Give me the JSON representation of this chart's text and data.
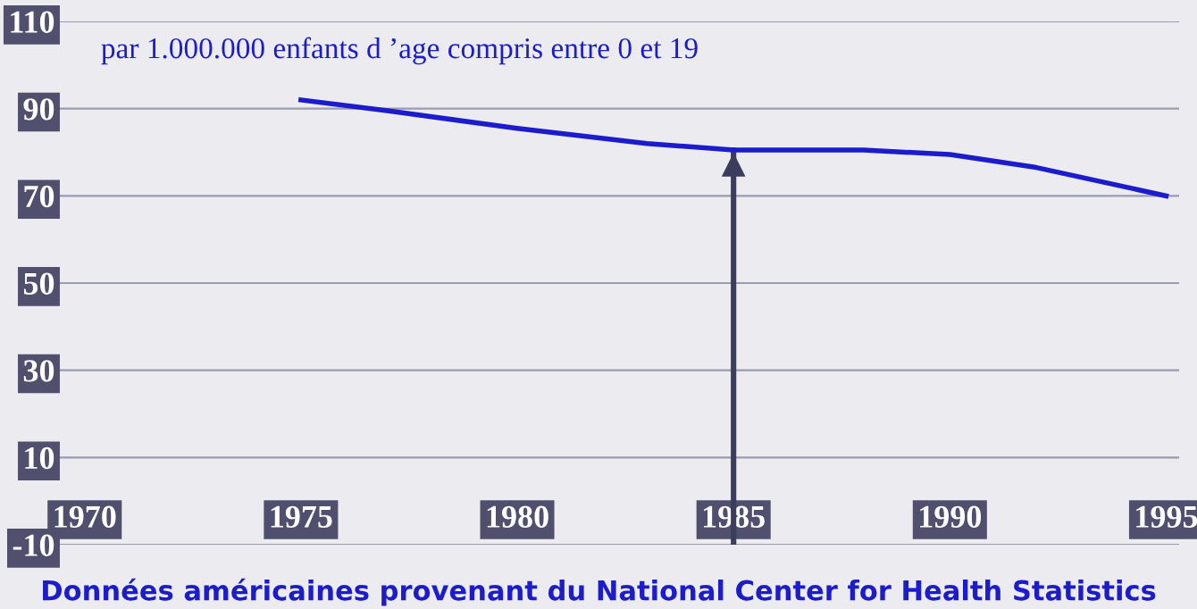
{
  "chart_data": {
    "type": "line",
    "x": [
      1975,
      1977,
      1980,
      1983,
      1985,
      1988,
      1990,
      1992,
      1995
    ],
    "series": [
      {
        "color": "#1c1ccc",
        "values": [
          92,
          89.5,
          85.5,
          82,
          80.5,
          80.5,
          79.5,
          76.5,
          70
        ]
      }
    ],
    "xlim": [
      1969.2,
      1995.3
    ],
    "xticks": [
      1970,
      1975,
      1980,
      1985,
      1990,
      1995
    ],
    "ylim": [
      -10,
      110
    ],
    "yticks": [
      -10,
      10,
      30,
      50,
      70,
      90,
      110
    ],
    "grid": "y",
    "legend": false,
    "marker": "none",
    "line_style": "solid",
    "ref_lines": [
      {
        "axis": "x",
        "value": 1985,
        "color": "#3c3c5c"
      }
    ],
    "annotations": [
      "par 1.000.000 enfants d ’age compris entre 0 et 19",
      "Données américaines provenant du National Center for Health Statistics"
    ]
  }
}
